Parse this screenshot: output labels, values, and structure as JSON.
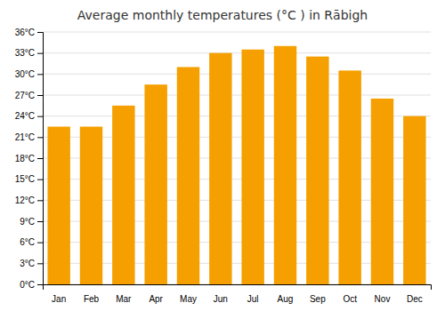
{
  "chart_data": {
    "type": "bar",
    "title": "Average monthly temperatures (°C ) in Rābigh",
    "categories": [
      "Jan",
      "Feb",
      "Mar",
      "Apr",
      "May",
      "Jun",
      "Jul",
      "Aug",
      "Sep",
      "Oct",
      "Nov",
      "Dec"
    ],
    "values": [
      22.5,
      22.5,
      25.5,
      28.5,
      31.0,
      33.0,
      33.5,
      34.0,
      32.5,
      30.5,
      26.5,
      24.0
    ],
    "color": "#F5A000",
    "ylim": [
      0,
      36
    ],
    "yticks": [
      {
        "value": 0,
        "label": "0°C"
      },
      {
        "value": 3,
        "label": "3°C"
      },
      {
        "value": 6,
        "label": "6°C"
      },
      {
        "value": 9,
        "label": "9°C"
      },
      {
        "value": 12,
        "label": "12°C"
      },
      {
        "value": 15,
        "label": "15°C"
      },
      {
        "value": 18,
        "label": "18°C"
      },
      {
        "value": 21,
        "label": "21°C"
      },
      {
        "value": 24,
        "label": "24°C"
      },
      {
        "value": 27,
        "label": "27°C"
      },
      {
        "value": 30,
        "label": "30°C"
      },
      {
        "value": 33,
        "label": "33°C"
      },
      {
        "value": 36,
        "label": "36°C"
      }
    ],
    "grid": true
  }
}
